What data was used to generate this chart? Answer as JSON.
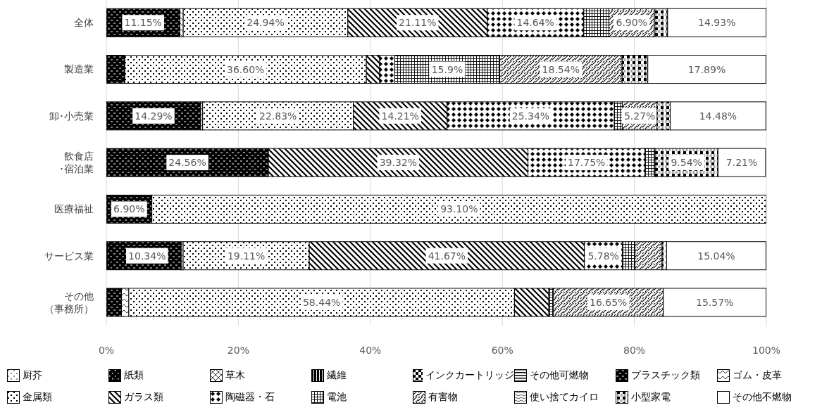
{
  "chart_data": {
    "type": "bar",
    "orientation": "horizontal",
    "stacked": true,
    "categories": [
      "全体",
      "製造業",
      "卸･小売業",
      "飲食店･宿泊業",
      "医療福祉",
      "サービス業",
      "その他（事務所）"
    ],
    "series": [
      {
        "name": "厨芥",
        "color": "#000000",
        "values": [
          null,
          null,
          null,
          null,
          null,
          null,
          null
        ]
      },
      {
        "name": "紙類",
        "color": "#000000",
        "values": [
          null,
          null,
          null,
          null,
          null,
          1.0,
          null
        ]
      },
      {
        "name": "草木",
        "color": "#000000",
        "values": [
          null,
          null,
          null,
          null,
          null,
          null,
          null
        ]
      },
      {
        "name": "繊維",
        "color": "#000000",
        "values": [
          null,
          null,
          null,
          null,
          null,
          null,
          null
        ]
      },
      {
        "name": "インクカートリッジ",
        "color": "#000000",
        "values": [
          null,
          null,
          null,
          null,
          null,
          null,
          null
        ]
      },
      {
        "name": "その他可燃物",
        "color": "#000000",
        "values": [
          null,
          null,
          null,
          null,
          null,
          null,
          null
        ]
      },
      {
        "name": "プラスチック類",
        "color": "#000000",
        "values": [
          11.15,
          2.8,
          14.29,
          24.56,
          6.9,
          10.34,
          2.3
        ],
        "value_labels": [
          "11.15%",
          null,
          "14.29%",
          "24.56%",
          "6.90%",
          "10.34%",
          null
        ]
      },
      {
        "name": "ゴム・皮革",
        "color": "#000000",
        "values": [
          0.5,
          null,
          0.3,
          null,
          null,
          0.3,
          1.1
        ]
      },
      {
        "name": "金属類",
        "color": "#000000",
        "values": [
          24.94,
          36.6,
          22.83,
          null,
          93.1,
          19.11,
          58.44
        ],
        "value_labels": [
          "24.94%",
          "36.60%",
          "22.83%",
          null,
          "93.10%",
          "19.11%",
          "58.44%"
        ]
      },
      {
        "name": "ガラス類",
        "color": "#000000",
        "values": [
          21.11,
          2.0,
          14.21,
          39.32,
          null,
          41.67,
          5.2
        ],
        "value_labels": [
          "21.11%",
          null,
          "14.21%",
          "39.32%",
          null,
          "41.67%",
          null
        ]
      },
      {
        "name": "陶磁器・石",
        "color": "#000000",
        "values": [
          14.64,
          2.3,
          25.34,
          17.75,
          null,
          5.78,
          null
        ],
        "value_labels": [
          "14.64%",
          null,
          "25.34%",
          "17.75%",
          null,
          "5.78%",
          null
        ]
      },
      {
        "name": "電池",
        "color": "#000000",
        "values": [
          3.8,
          15.9,
          1.2,
          1.5,
          null,
          1.9,
          0.7
        ],
        "value_labels": [
          null,
          "15.9%",
          null,
          null,
          null,
          null,
          null
        ]
      },
      {
        "name": "有害物",
        "color": "#000000",
        "values": [
          6.9,
          18.54,
          5.27,
          null,
          null,
          4.1,
          16.65
        ],
        "value_labels": [
          "6.90%",
          "18.54%",
          "5.27%",
          null,
          null,
          null,
          "16.65%"
        ]
      },
      {
        "name": "使い捨てカイロ",
        "color": "#000000",
        "values": [
          null,
          null,
          null,
          null,
          null,
          null,
          null
        ]
      },
      {
        "name": "小型家電",
        "color": "#000000",
        "values": [
          2.0,
          3.9,
          2.0,
          9.54,
          null,
          0.7,
          null
        ],
        "value_labels": [
          null,
          null,
          null,
          "9.54%",
          null,
          null,
          null
        ]
      },
      {
        "name": "その他不燃物",
        "color": "#ffffff",
        "values": [
          14.93,
          17.89,
          14.48,
          7.21,
          null,
          15.04,
          15.57
        ],
        "value_labels": [
          "14.93%",
          "17.89%",
          "14.48%",
          "7.21%",
          null,
          "15.04%",
          "15.57%"
        ]
      }
    ],
    "xlim": [
      0,
      100
    ],
    "xticks": [
      {
        "value": 0,
        "label": "0%"
      },
      {
        "value": 20,
        "label": "20%"
      },
      {
        "value": 40,
        "label": "40%"
      },
      {
        "value": 60,
        "label": "60%"
      },
      {
        "value": 80,
        "label": "80%"
      },
      {
        "value": 100,
        "label": "100%"
      }
    ],
    "grid": "x",
    "legend": "bottom"
  }
}
